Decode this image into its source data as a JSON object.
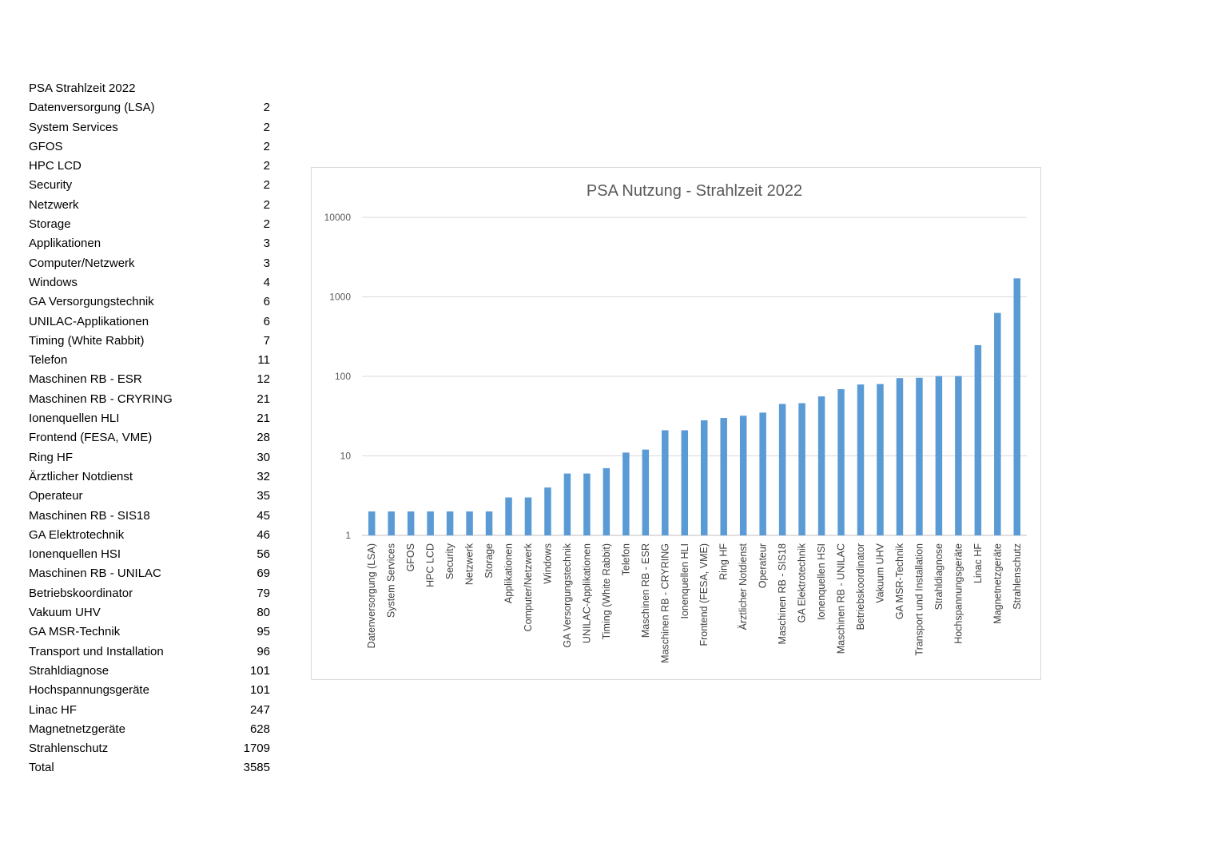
{
  "table": {
    "header": "PSA Strahlzeit 2022",
    "rows": [
      {
        "label": "Datenversorgung (LSA)",
        "value": "2"
      },
      {
        "label": "System Services",
        "value": "2"
      },
      {
        "label": "GFOS",
        "value": "2"
      },
      {
        "label": "HPC LCD",
        "value": "2"
      },
      {
        "label": "Security",
        "value": "2"
      },
      {
        "label": "Netzwerk",
        "value": "2"
      },
      {
        "label": "Storage",
        "value": "2"
      },
      {
        "label": "Applikationen",
        "value": "3"
      },
      {
        "label": "Computer/Netzwerk",
        "value": "3"
      },
      {
        "label": "Windows",
        "value": "4"
      },
      {
        "label": "GA Versorgungstechnik",
        "value": "6"
      },
      {
        "label": "UNILAC-Applikationen",
        "value": "6"
      },
      {
        "label": "Timing (White Rabbit)",
        "value": "7"
      },
      {
        "label": "Telefon",
        "value": "11"
      },
      {
        "label": "Maschinen RB - ESR",
        "value": "12"
      },
      {
        "label": "Maschinen RB - CRYRING",
        "value": "21"
      },
      {
        "label": "Ionenquellen HLI",
        "value": "21"
      },
      {
        "label": "Frontend (FESA, VME)",
        "value": "28"
      },
      {
        "label": "Ring HF",
        "value": "30"
      },
      {
        "label": "Ärztlicher Notdienst",
        "value": "32"
      },
      {
        "label": "Operateur",
        "value": "35"
      },
      {
        "label": "Maschinen RB - SIS18",
        "value": "45"
      },
      {
        "label": "GA Elektrotechnik",
        "value": "46"
      },
      {
        "label": "Ionenquellen HSI",
        "value": "56"
      },
      {
        "label": "Maschinen RB - UNILAC",
        "value": "69"
      },
      {
        "label": "Betriebskoordinator",
        "value": "79"
      },
      {
        "label": "Vakuum UHV",
        "value": "80"
      },
      {
        "label": "GA MSR-Technik",
        "value": "95"
      },
      {
        "label": "Transport und Installation",
        "value": "96"
      },
      {
        "label": "Strahldiagnose",
        "value": "101"
      },
      {
        "label": "Hochspannungsgeräte",
        "value": "101"
      },
      {
        "label": "Linac HF",
        "value": "247"
      },
      {
        "label": "Magnetnetzgeräte",
        "value": "628"
      },
      {
        "label": "Strahlenschutz",
        "value": "1709"
      },
      {
        "label": "Total",
        "value": "3585"
      }
    ]
  },
  "chart_data": {
    "type": "bar",
    "title": "PSA Nutzung - Strahlzeit 2022",
    "xlabel": "",
    "ylabel": "",
    "y_scale": "log",
    "ylim": [
      1,
      10000
    ],
    "yticks": [
      "1",
      "10",
      "100",
      "1000",
      "10000"
    ],
    "grid": true,
    "bar_color": "#5b9bd5",
    "categories": [
      "Datenversorgung (LSA)",
      "System Services",
      "GFOS",
      "HPC LCD",
      "Security",
      "Netzwerk",
      "Storage",
      "Applikationen",
      "Computer/Netzwerk",
      "Windows",
      "GA Versorgungstechnik",
      "UNILAC-Applikationen",
      "Timing (White Rabbit)",
      "Telefon",
      "Maschinen RB - ESR",
      "Maschinen RB - CRYRING",
      "Ionenquellen HLI",
      "Frontend (FESA, VME)",
      "Ring HF",
      "Ärztlicher Notdienst",
      "Operateur",
      "Maschinen RB - SIS18",
      "GA Elektrotechnik",
      "Ionenquellen HSI",
      "Maschinen RB - UNILAC",
      "Betriebskoordinator",
      "Vakuum UHV",
      "GA MSR-Technik",
      "Transport und Installation",
      "Strahldiagnose",
      "Hochspannungsgeräte",
      "Linac HF",
      "Magnetnetzgeräte",
      "Strahlenschutz"
    ],
    "values": [
      2,
      2,
      2,
      2,
      2,
      2,
      2,
      3,
      3,
      4,
      6,
      6,
      7,
      11,
      12,
      21,
      21,
      28,
      30,
      32,
      35,
      45,
      46,
      56,
      69,
      79,
      80,
      95,
      96,
      101,
      101,
      247,
      628,
      1709
    ]
  }
}
